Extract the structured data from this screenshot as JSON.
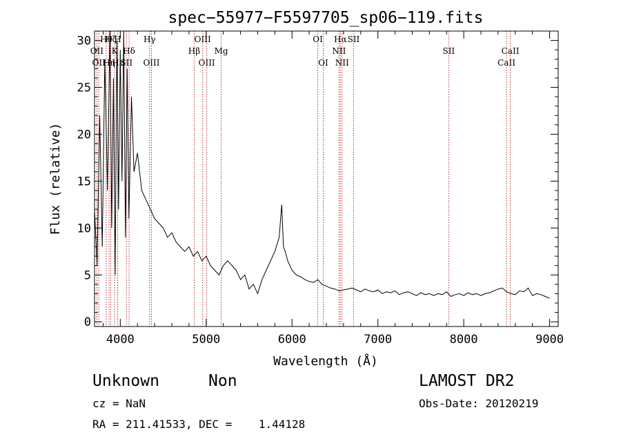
{
  "chart_data": {
    "type": "line",
    "title": "spec−55977−F5597705_sp06−119.fits",
    "xlabel": "Wavelength (Å)",
    "ylabel": "Flux (relative)",
    "xlim": [
      3700,
      9100
    ],
    "ylim": [
      -0.5,
      31
    ],
    "xticks": [
      4000,
      5000,
      6000,
      7000,
      8000,
      9000
    ],
    "yticks": [
      0,
      5,
      10,
      15,
      20,
      25,
      30
    ],
    "grid": false,
    "series": [
      {
        "color": "#000000",
        "x": [
          3700,
          3730,
          3760,
          3790,
          3820,
          3850,
          3880,
          3900,
          3920,
          3940,
          3960,
          3980,
          4000,
          4020,
          4040,
          4060,
          4080,
          4100,
          4130,
          4160,
          4200,
          4250,
          4300,
          4350,
          4400,
          4450,
          4500,
          4550,
          4600,
          4650,
          4700,
          4750,
          4800,
          4850,
          4900,
          4950,
          5000,
          5050,
          5100,
          5150,
          5200,
          5250,
          5300,
          5350,
          5400,
          5450,
          5500,
          5550,
          5600,
          5650,
          5700,
          5750,
          5800,
          5850,
          5880,
          5900,
          5920,
          5950,
          6000,
          6050,
          6100,
          6150,
          6200,
          6250,
          6300,
          6350,
          6400,
          6450,
          6500,
          6550,
          6600,
          6650,
          6700,
          6750,
          6800,
          6850,
          6900,
          6950,
          7000,
          7050,
          7100,
          7150,
          7200,
          7250,
          7300,
          7350,
          7400,
          7450,
          7500,
          7550,
          7600,
          7650,
          7700,
          7750,
          7800,
          7850,
          7900,
          7950,
          8000,
          8050,
          8100,
          8150,
          8200,
          8250,
          8300,
          8350,
          8400,
          8450,
          8500,
          8550,
          8600,
          8650,
          8700,
          8750,
          8800,
          8850,
          8900,
          8950,
          9000
        ],
        "y": [
          12,
          6,
          22,
          8,
          28,
          14,
          31,
          10,
          26,
          5,
          30,
          12,
          29,
          15,
          31,
          9,
          27,
          11,
          24,
          16,
          18,
          14,
          13,
          12,
          11,
          10.5,
          10,
          9,
          9.5,
          8.5,
          8,
          7.5,
          8,
          7,
          7.5,
          6.5,
          7,
          6,
          5.5,
          5,
          6,
          6.5,
          6,
          5.5,
          4.5,
          5,
          3.5,
          4,
          3,
          4.5,
          5.5,
          6.5,
          7.5,
          9,
          12.5,
          8,
          7.5,
          6.5,
          5.5,
          5,
          4.8,
          4.5,
          4.3,
          4.2,
          4.5,
          4,
          3.8,
          3.6,
          3.5,
          3.3,
          3.4,
          3.5,
          3.6,
          3.4,
          3.2,
          3.5,
          3.3,
          3.2,
          3.4,
          3.0,
          3.2,
          3.1,
          3.3,
          2.9,
          3.1,
          3.2,
          3.0,
          2.8,
          3.1,
          2.9,
          3.0,
          2.8,
          3.0,
          2.9,
          3.2,
          2.7,
          2.9,
          3.0,
          2.8,
          3.1,
          2.9,
          3.0,
          2.8,
          3.0,
          3.1,
          3.3,
          3.5,
          3.6,
          3.2,
          3.0,
          2.9,
          3.3,
          3.2,
          3.6,
          2.8,
          3.0,
          2.9,
          2.7,
          2.5
        ]
      }
    ],
    "lines": [
      {
        "wave": 3727,
        "label": "OII",
        "row": 1
      },
      {
        "wave": 3750,
        "label": "OII",
        "row": 2
      },
      {
        "wave": 3835,
        "label": "Hθ",
        "row": 0
      },
      {
        "wave": 3869,
        "label": "Hη",
        "row": 2
      },
      {
        "wave": 3889,
        "label": "Hζ",
        "row": 0
      },
      {
        "wave": 3934,
        "label": "K",
        "row": 1
      },
      {
        "wave": 3969,
        "label": "H",
        "row": 0
      },
      {
        "wave": 3970,
        "label": "Hε",
        "row": 2
      },
      {
        "wave": 4072,
        "label": "SII",
        "row": 2
      },
      {
        "wave": 4102,
        "label": "Hδ",
        "row": 1
      },
      {
        "wave": 4341,
        "label": "Hγ",
        "row": 0
      },
      {
        "wave": 4363,
        "label": "OIII",
        "row": 2
      },
      {
        "wave": 4861,
        "label": "Hβ",
        "row": 1
      },
      {
        "wave": 4959,
        "label": "OIII",
        "row": 0
      },
      {
        "wave": 5007,
        "label": "OIII",
        "row": 2
      },
      {
        "wave": 5175,
        "label": "Mg",
        "row": 1
      },
      {
        "wave": 6300,
        "label": "OI",
        "row": 0
      },
      {
        "wave": 6364,
        "label": "OI",
        "row": 2
      },
      {
        "wave": 6548,
        "label": "NII",
        "row": 1
      },
      {
        "wave": 6563,
        "label": "Hα",
        "row": 0
      },
      {
        "wave": 6583,
        "label": "NII",
        "row": 2
      },
      {
        "wave": 6717,
        "label": "SII",
        "row": 0
      },
      {
        "wave": 7825,
        "label": "SII",
        "row": 1
      },
      {
        "wave": 8498,
        "label": "CaII",
        "row": 2
      },
      {
        "wave": 8542,
        "label": "CaII",
        "row": 1
      }
    ]
  },
  "footer": {
    "class_text": "Unknown",
    "subclass_text": "Non",
    "cz_text": "cz = NaN",
    "radec_text": "RA = 211.41533, DEC =    1.44128",
    "survey_text": "LAMOST DR2",
    "obsdate_text": "Obs-Date: 20120219"
  },
  "colors": {
    "axis": "#000000",
    "spectrum": "#000000",
    "line_marker": "#b03030"
  }
}
